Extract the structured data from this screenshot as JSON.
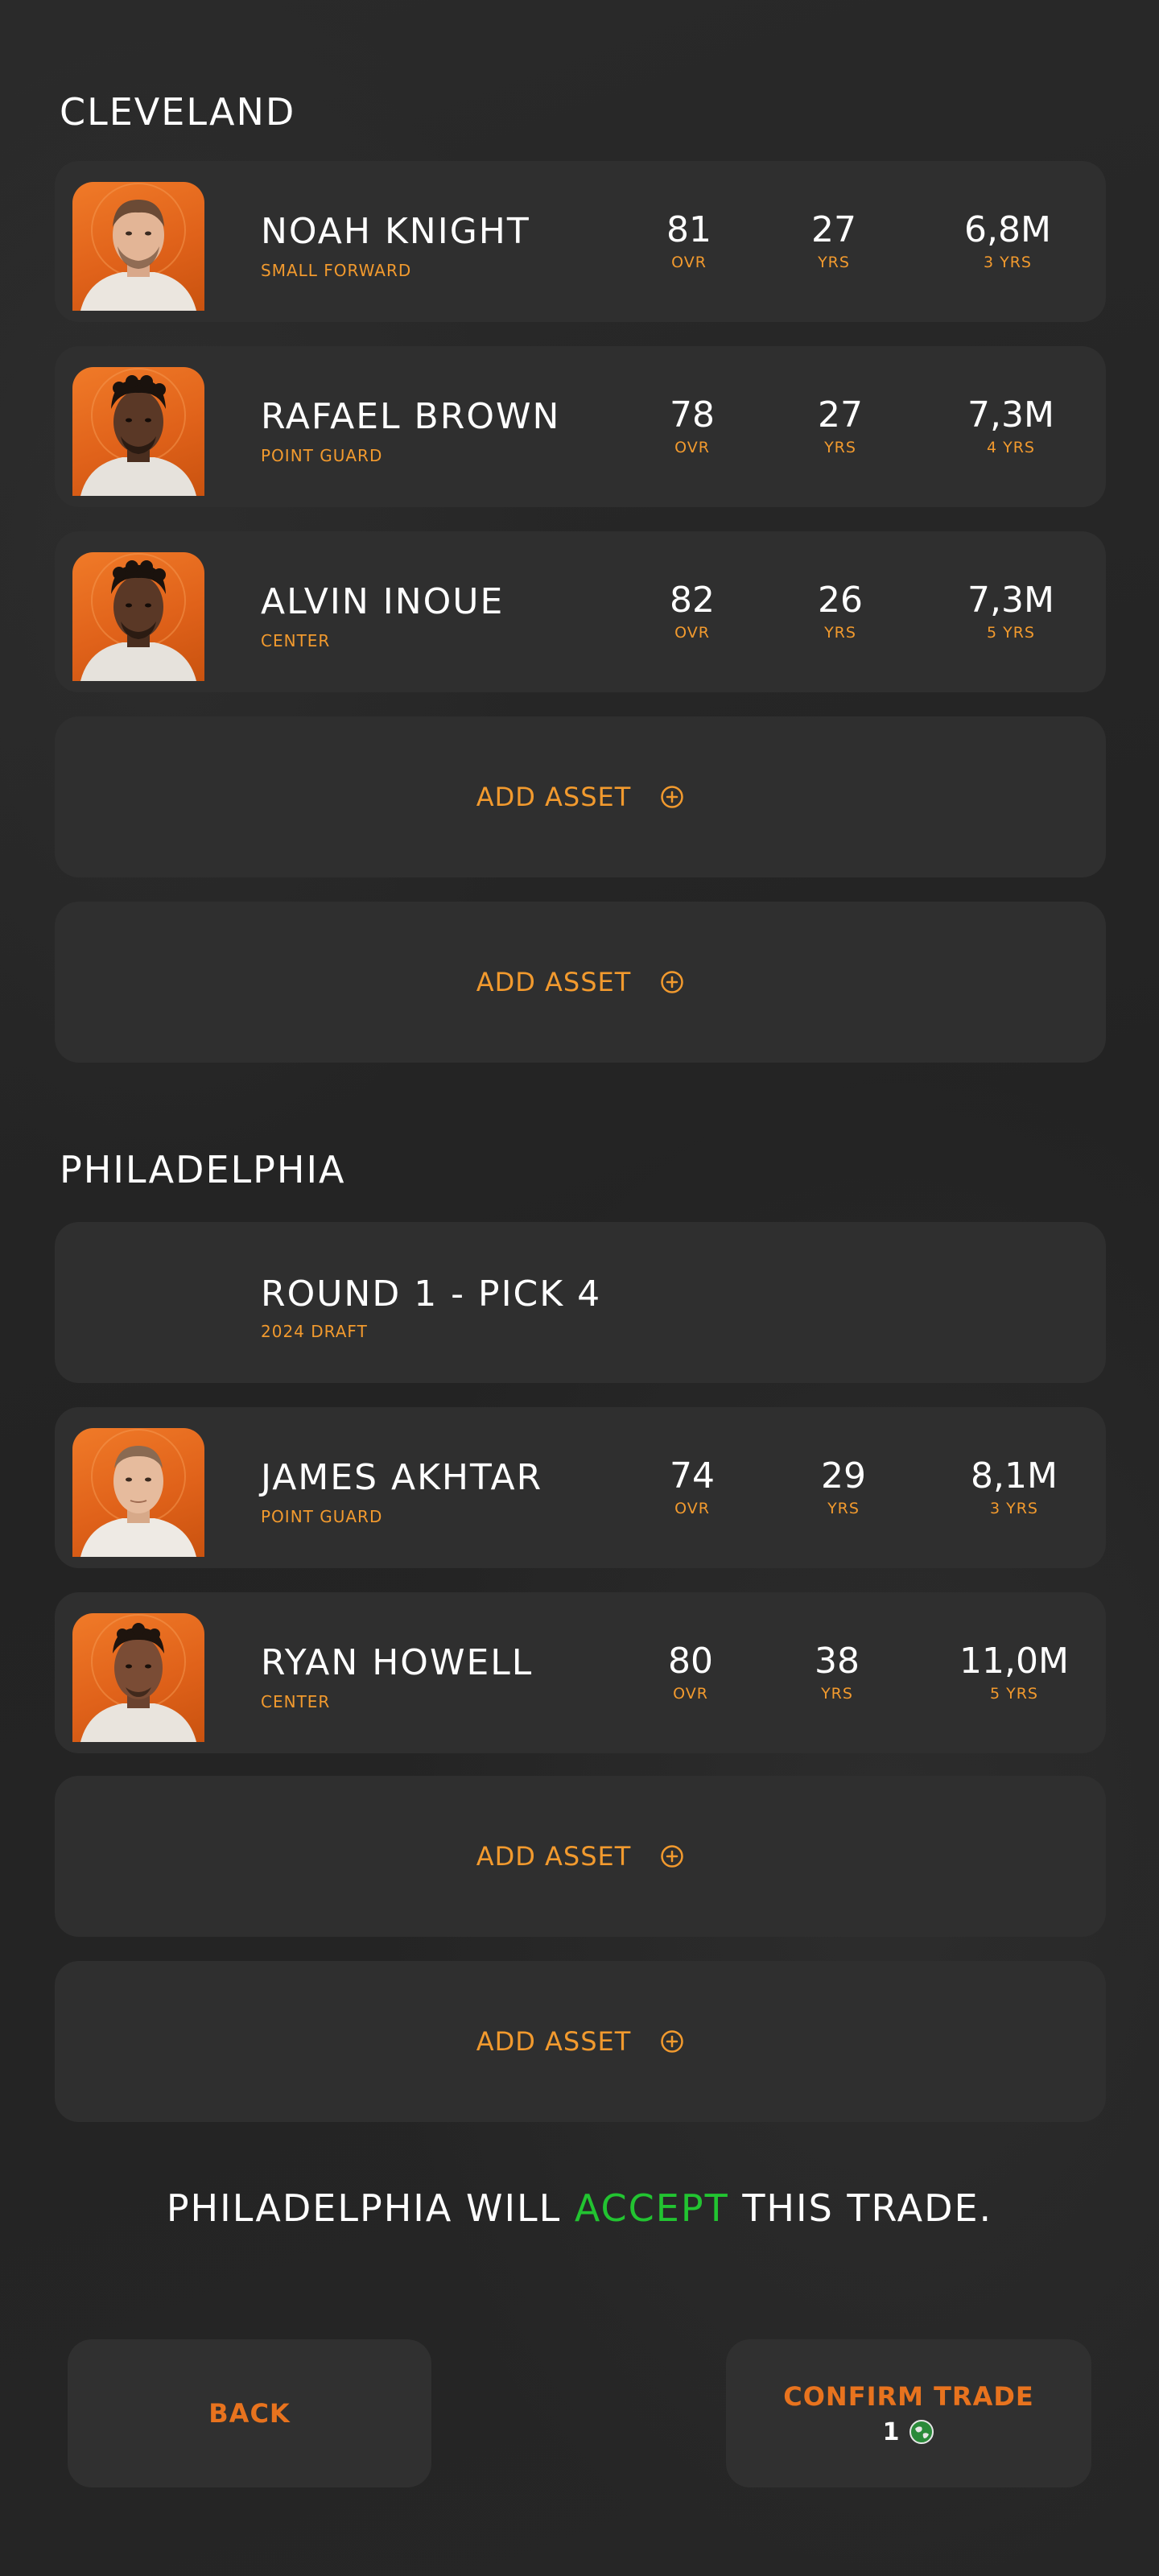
{
  "teams": [
    {
      "name": "CLEVELAND",
      "players": [
        {
          "name": "NOAH KNIGHT",
          "position": "SMALL FORWARD",
          "ovr": "81",
          "ovr_label": "OVR",
          "age": "27",
          "age_label": "YRS",
          "salary": "6,8M",
          "contract": "3 YRS",
          "look": "light"
        },
        {
          "name": "RAFAEL BROWN",
          "position": "POINT GUARD",
          "ovr": "78",
          "ovr_label": "OVR",
          "age": "27",
          "age_label": "YRS",
          "salary": "7,3M",
          "contract": "4 YRS",
          "look": "dark"
        },
        {
          "name": "ALVIN INOUE",
          "position": "CENTER",
          "ovr": "82",
          "ovr_label": "OVR",
          "age": "26",
          "age_label": "YRS",
          "salary": "7,3M",
          "contract": "5 YRS",
          "look": "dark"
        }
      ],
      "add_asset_labels": [
        "ADD ASSET",
        "ADD ASSET"
      ]
    },
    {
      "name": "PHILADELPHIA",
      "pick": {
        "title": "ROUND 1 - PICK 4",
        "subtitle": "2024 DRAFT"
      },
      "players": [
        {
          "name": "JAMES AKHTAR",
          "position": "POINT GUARD",
          "ovr": "74",
          "ovr_label": "OVR",
          "age": "29",
          "age_label": "YRS",
          "salary": "8,1M",
          "contract": "3 YRS",
          "look": "light"
        },
        {
          "name": "RYAN HOWELL",
          "position": "CENTER",
          "ovr": "80",
          "ovr_label": "OVR",
          "age": "38",
          "age_label": "YRS",
          "salary": "11,0M",
          "contract": "5 YRS",
          "look": "dark"
        }
      ],
      "add_asset_labels": [
        "ADD ASSET",
        "ADD ASSET"
      ]
    }
  ],
  "verdict": {
    "prefix": "PHILADELPHIA WILL",
    "highlight": "ACCEPT",
    "suffix": "THIS TRADE."
  },
  "buttons": {
    "back": "BACK",
    "confirm": "CONFIRM TRADE",
    "confirm_cost": "1"
  },
  "colors": {
    "accent": "#f29a2e",
    "button_text": "#e8731e",
    "accept": "#22c431",
    "card": "#2f2f2f",
    "avatar_bg": "#e8691c"
  },
  "icons": {
    "add": "plus-circle-icon",
    "coin": "globe-coin-icon"
  }
}
